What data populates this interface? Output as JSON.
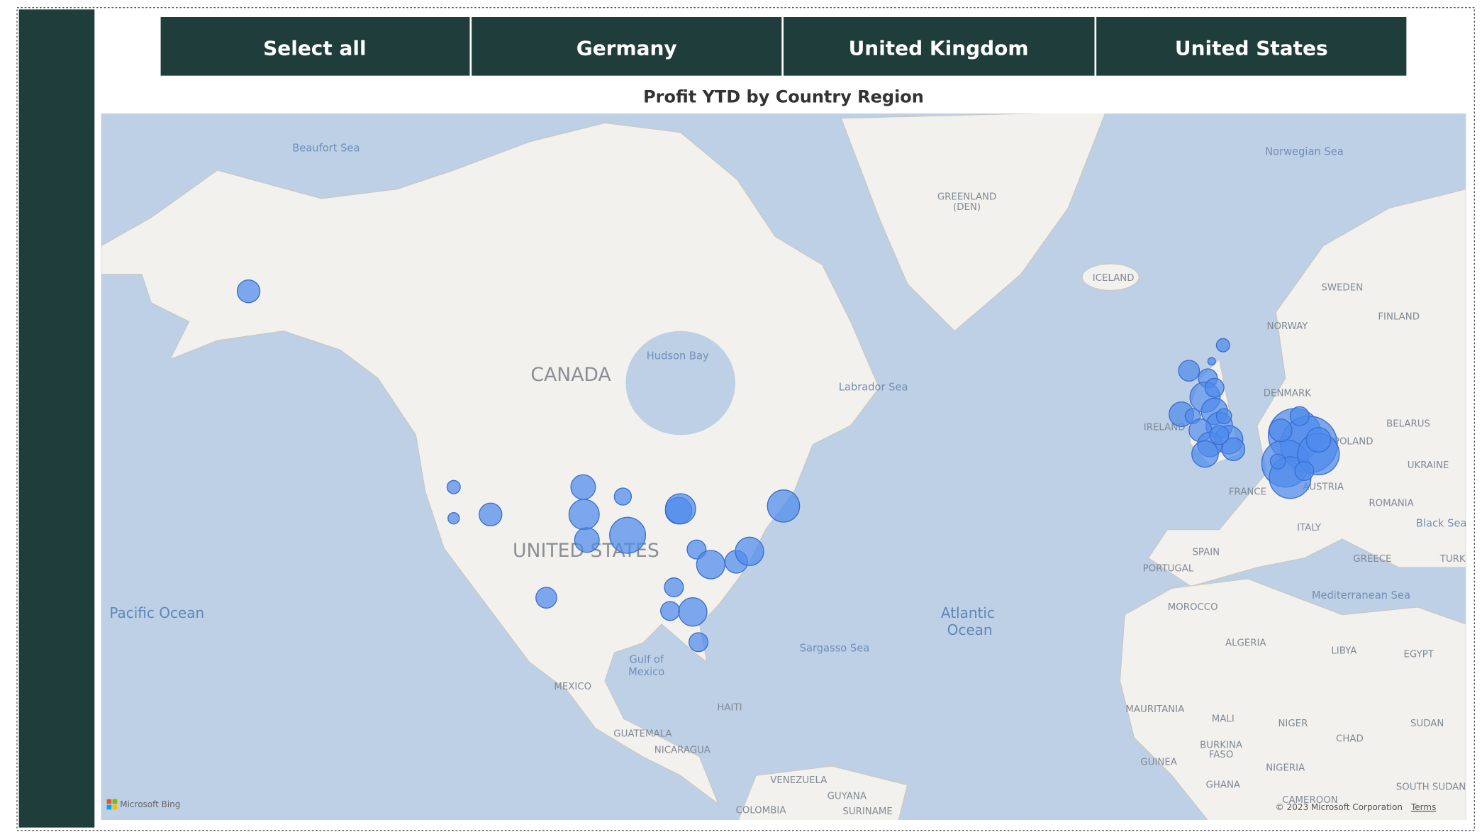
{
  "slicer": {
    "buttons": [
      "Select all",
      "Germany",
      "United Kingdom",
      "United States"
    ]
  },
  "visual": {
    "title": "Profit YTD by Country Region"
  },
  "map": {
    "labels": [
      "Beaufort Sea",
      "CANADA",
      "Hudson Bay",
      "Labrador Sea",
      "GREENLAND",
      "(DEN)",
      "ICELAND",
      "Norwegian Sea",
      "SWEDEN",
      "FINLAND",
      "NORWAY",
      "DENMARK",
      "BELARUS",
      "POLAND",
      "UKRAINE",
      "FRANCE",
      "AUSTRIA",
      "ROMANIA",
      "Black Sea",
      "ITALY",
      "SPAIN",
      "PORTUGAL",
      "GREECE",
      "TURK",
      "IRELAND",
      "Mediterranean Sea",
      "MOROCCO",
      "ALGERIA",
      "LIBYA",
      "EGYPT",
      "MAURITANIA",
      "MALI",
      "NIGER",
      "CHAD",
      "SUDAN",
      "BURKINA",
      "FASO",
      "NIGERIA",
      "GUINEA",
      "GHANA",
      "SOUTH SUDAN",
      "CAMEROON",
      "UNITED STATES",
      "Pacific Ocean",
      "Atlantic",
      "Ocean",
      "Sargasso Sea",
      "Gulf of",
      "Mexico",
      "MEXICO",
      "GUATEMALA",
      "NICARAGUA",
      "HAITI",
      "VENEZUELA",
      "COLOMBIA",
      "GUYANA",
      "SURINAME"
    ],
    "attribution": {
      "logo": "Microsoft Bing",
      "copyright": "© 2023 Microsoft Corporation",
      "terms": "Terms"
    }
  }
}
